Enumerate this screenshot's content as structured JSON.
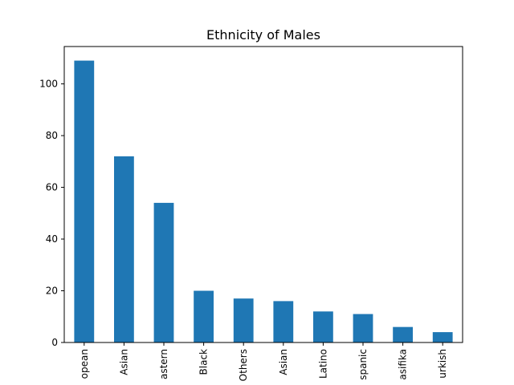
{
  "chart_data": {
    "type": "bar",
    "title": "Ethnicity of Males",
    "xlabel": "",
    "ylabel": "",
    "categories": [
      "opean",
      "Asian",
      "astern",
      "Black",
      "Others",
      "Asian",
      "Latino",
      "spanic",
      "asifika",
      "urkish"
    ],
    "values": [
      109,
      72,
      54,
      20,
      17,
      16,
      12,
      11,
      6,
      4
    ],
    "ylim": [
      0,
      114.45
    ],
    "yticks": [
      0,
      20,
      40,
      60,
      80,
      100
    ],
    "grid": false,
    "legend": "none",
    "bar_color": "#1f77b4"
  }
}
